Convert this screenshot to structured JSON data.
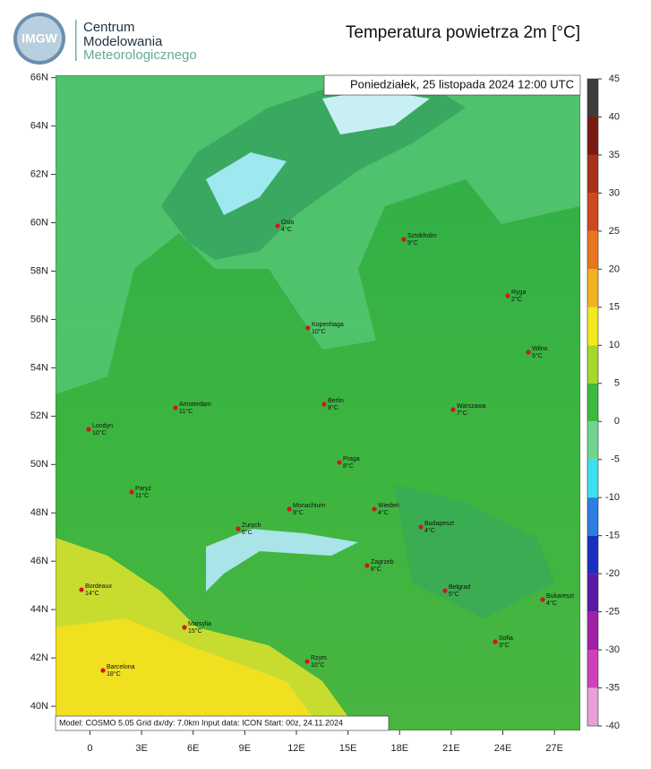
{
  "header": {
    "logo_text": "IMGW",
    "org_lines": [
      "Centrum",
      "Modelowania",
      "Meteorologicznego"
    ],
    "title": "Temperatura powietrza 2m [°C]"
  },
  "map": {
    "date": "Poniedziałek, 25 listopada 2024 12:00 UTC",
    "footer": "Model: COSMO 5.05  Grid dx/dy: 7.0km  Input data: ICON  Start: 00z, 24.11.2024",
    "xlim": [
      -2,
      28.5
    ],
    "ylim": [
      39,
      66.1
    ],
    "xticks": [
      0,
      {
        "value": 3,
        "label": "3E"
      },
      {
        "value": 6,
        "label": "6E"
      },
      {
        "value": 9,
        "label": "9E"
      },
      {
        "value": 12,
        "label": "12E"
      },
      {
        "value": 15,
        "label": "15E"
      },
      {
        "value": 18,
        "label": "18E"
      },
      {
        "value": 21,
        "label": "21E"
      },
      {
        "value": 24,
        "label": "24E"
      },
      {
        "value": 27,
        "label": "27E"
      }
    ],
    "yticks": [
      {
        "value": 40,
        "label": "40N"
      },
      {
        "value": 42,
        "label": "42N"
      },
      {
        "value": 44,
        "label": "44N"
      },
      {
        "value": 46,
        "label": "46N"
      },
      {
        "value": 48,
        "label": "48N"
      },
      {
        "value": 50,
        "label": "50N"
      },
      {
        "value": 52,
        "label": "52N"
      },
      {
        "value": 54,
        "label": "54N"
      },
      {
        "value": 56,
        "label": "56N"
      },
      {
        "value": 58,
        "label": "58N"
      },
      {
        "value": 60,
        "label": "60N"
      },
      {
        "value": 62,
        "label": "62N"
      },
      {
        "value": 64,
        "label": "64N"
      },
      {
        "value": 66,
        "label": "66N"
      }
    ],
    "cities": [
      {
        "name": "Oslo",
        "temp": "4°C"
      },
      {
        "name": "Sztokholm",
        "temp": "9°C"
      },
      {
        "name": "Ryga",
        "temp": "2°C"
      },
      {
        "name": "Kopenhaga",
        "temp": "10°C"
      },
      {
        "name": "Wilno",
        "temp": "5°C"
      },
      {
        "name": "Amsterdam",
        "temp": "11°C"
      },
      {
        "name": "Berlin",
        "temp": "8°C"
      },
      {
        "name": "Warszawa",
        "temp": "7°C"
      },
      {
        "name": "Londyn",
        "temp": "10°C"
      },
      {
        "name": "Praga",
        "temp": "8°C"
      },
      {
        "name": "Paryż",
        "temp": "11°C"
      },
      {
        "name": "Monachium",
        "temp": "9°C"
      },
      {
        "name": "Wiedeń",
        "temp": "4°C"
      },
      {
        "name": "Zurych",
        "temp": "6°C"
      },
      {
        "name": "Budapeszt",
        "temp": "4°C"
      },
      {
        "name": "Zagrzeb",
        "temp": "8°C"
      },
      {
        "name": "Bordeaux",
        "temp": "14°C"
      },
      {
        "name": "Belgrad",
        "temp": "5°C"
      },
      {
        "name": "Bukareszt",
        "temp": "4°C"
      },
      {
        "name": "Marsylia",
        "temp": "15°C"
      },
      {
        "name": "Sofia",
        "temp": "3°C"
      },
      {
        "name": "Rzym",
        "temp": "10°C"
      },
      {
        "name": "Barcelona",
        "temp": "18°C"
      }
    ]
  },
  "colorbar": {
    "ticks": [
      45,
      40,
      35,
      30,
      25,
      20,
      15,
      10,
      5,
      0,
      -5,
      -10,
      -15,
      -20,
      -25,
      -30,
      -35,
      -40
    ],
    "colors": [
      "#3c3c3c",
      "#7a1a10",
      "#a8321a",
      "#d0481e",
      "#e8761e",
      "#f3b21e",
      "#f2e81e",
      "#a6d82a",
      "#3cba3e",
      "#6fd48f",
      "#3ee0f0",
      "#2a7fe0",
      "#1a2fc0",
      "#5a1aa8",
      "#a020a8",
      "#d040b8",
      "#e8a0d8"
    ]
  }
}
